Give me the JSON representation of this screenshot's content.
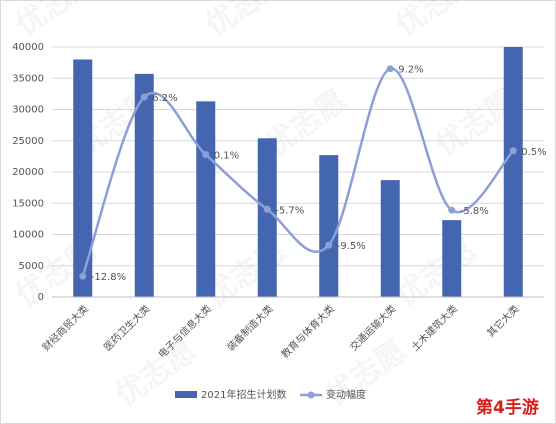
{
  "chart_data": {
    "type": "bar-line",
    "categories": [
      "财经商贸大类",
      "医药卫生大类",
      "电子与信息大类",
      "装备制造大类",
      "教育与体育大类",
      "交通运输大类",
      "土木建筑大类",
      "其它大类"
    ],
    "series": [
      {
        "name": "2021年招生计划数",
        "type": "bar",
        "color": "#4466b0",
        "values": [
          38000,
          35700,
          31300,
          25400,
          22700,
          18700,
          12300,
          40000
        ]
      },
      {
        "name": "变动幅度",
        "type": "line",
        "axis": "y2",
        "color": "#8c9fd6",
        "values": [
          -12.8,
          6.2,
          0.1,
          -5.7,
          -9.5,
          9.2,
          -5.8,
          0.5
        ],
        "value_labels": [
          "-12.8%",
          "6.2%",
          "0.1%",
          "-5.7%",
          "-9.5%",
          "9.2%",
          "-5.8%",
          "0.5%"
        ]
      }
    ],
    "ylim": [
      0,
      40000
    ],
    "yticks": [
      0,
      5000,
      10000,
      15000,
      20000,
      25000,
      30000,
      35000,
      40000
    ],
    "y2lim": [
      -15,
      11.5
    ],
    "grid": true,
    "legend": "bottom",
    "watermark": "优志愿",
    "logo": "第4手游"
  }
}
